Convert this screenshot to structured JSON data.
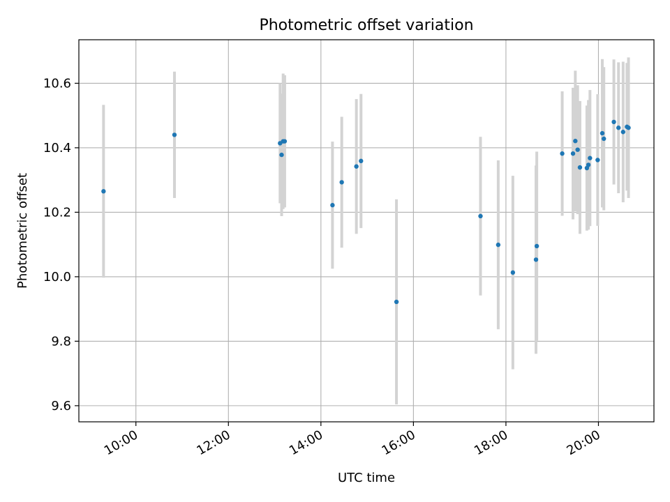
{
  "chart_data": {
    "type": "scatter",
    "title": "Photometric offset variation",
    "xlabel": "UTC time",
    "ylabel": "Photometric offset",
    "x_ticks": [
      "10:00",
      "12:00",
      "14:00",
      "16:00",
      "18:00",
      "20:00"
    ],
    "y_ticks": [
      "9.6",
      "9.8",
      "10.0",
      "10.2",
      "10.4",
      "10.6"
    ],
    "xlim": [
      "08:46",
      "21:12"
    ],
    "ylim": [
      9.55,
      10.735
    ],
    "grid": true,
    "marker_color": "#1f77b4",
    "errorbar_color": "#d3d3d3",
    "series": [
      {
        "points": [
          {
            "x": "09:18",
            "y": 10.265,
            "err": 0.268
          },
          {
            "x": "10:50",
            "y": 10.44,
            "err": 0.196
          },
          {
            "x": "13:07",
            "y": 10.414,
            "err": 0.186
          },
          {
            "x": "13:09",
            "y": 10.378,
            "err": 0.19
          },
          {
            "x": "13:11",
            "y": 10.42,
            "err": 0.21
          },
          {
            "x": "13:13",
            "y": 10.42,
            "err": 0.205
          },
          {
            "x": "14:15",
            "y": 10.222,
            "err": 0.197
          },
          {
            "x": "14:27",
            "y": 10.293,
            "err": 0.203
          },
          {
            "x": "14:46",
            "y": 10.342,
            "err": 0.209
          },
          {
            "x": "14:52",
            "y": 10.359,
            "err": 0.208
          },
          {
            "x": "15:38",
            "y": 9.922,
            "err": 0.318
          },
          {
            "x": "17:27",
            "y": 10.188,
            "err": 0.246
          },
          {
            "x": "17:50",
            "y": 10.099,
            "err": 0.262
          },
          {
            "x": "18:09",
            "y": 10.013,
            "err": 0.3
          },
          {
            "x": "18:39",
            "y": 10.053,
            "err": 0.292
          },
          {
            "x": "18:40",
            "y": 10.095,
            "err": 0.293
          },
          {
            "x": "19:13",
            "y": 10.382,
            "err": 0.193
          },
          {
            "x": "19:27",
            "y": 10.382,
            "err": 0.204
          },
          {
            "x": "19:30",
            "y": 10.421,
            "err": 0.218
          },
          {
            "x": "19:33",
            "y": 10.394,
            "err": 0.2
          },
          {
            "x": "19:36",
            "y": 10.339,
            "err": 0.206
          },
          {
            "x": "19:45",
            "y": 10.337,
            "err": 0.194
          },
          {
            "x": "19:47",
            "y": 10.347,
            "err": 0.201
          },
          {
            "x": "19:49",
            "y": 10.368,
            "err": 0.211
          },
          {
            "x": "19:59",
            "y": 10.362,
            "err": 0.204
          },
          {
            "x": "20:05",
            "y": 10.445,
            "err": 0.23
          },
          {
            "x": "20:07",
            "y": 10.428,
            "err": 0.222
          },
          {
            "x": "20:20",
            "y": 10.48,
            "err": 0.194
          },
          {
            "x": "20:26",
            "y": 10.462,
            "err": 0.203
          },
          {
            "x": "20:32",
            "y": 10.449,
            "err": 0.218
          },
          {
            "x": "20:37",
            "y": 10.465,
            "err": 0.198
          },
          {
            "x": "20:39",
            "y": 10.462,
            "err": 0.218
          }
        ]
      }
    ]
  }
}
